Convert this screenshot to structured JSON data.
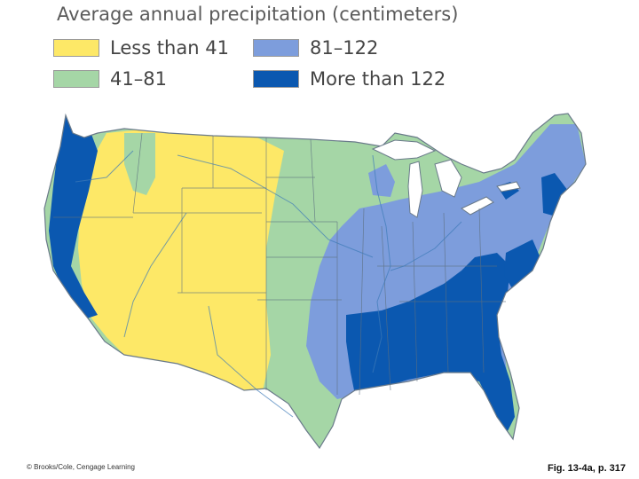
{
  "map": {
    "title": "Average annual precipitation (centimeters)",
    "legend": [
      {
        "label": "Less than 41",
        "color": "#fde867"
      },
      {
        "label": "41–81",
        "color": "#a5d6a6"
      },
      {
        "label": "81–122",
        "color": "#7d9ddc"
      },
      {
        "label": "More than 122",
        "color": "#0b58b0"
      }
    ],
    "credit": "© Brooks/Cole, Cengage Learning",
    "figure_ref": "Fig. 13-4a, p. 317"
  }
}
